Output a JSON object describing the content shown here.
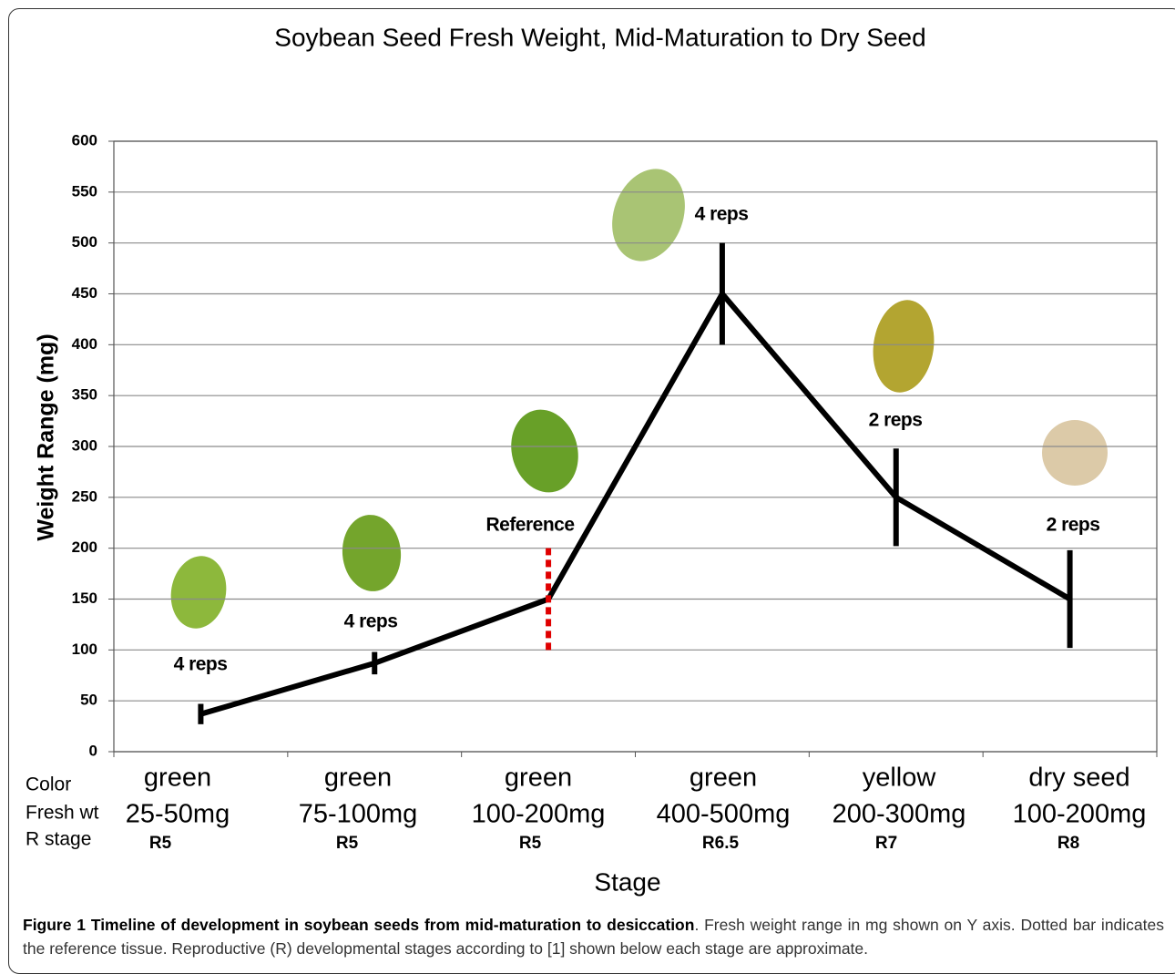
{
  "chart_data": {
    "type": "line",
    "title": "Soybean Seed Fresh Weight, Mid-Maturation to Dry Seed",
    "y_label": "Weight Range (mg)",
    "x_label": "Stage",
    "ylim": [
      0,
      600
    ],
    "yticks": [
      0,
      50,
      100,
      150,
      200,
      250,
      300,
      350,
      400,
      450,
      500,
      550,
      600
    ],
    "grid": true,
    "category_rows": [
      {
        "name": "Color",
        "values": [
          "green",
          "green",
          "green",
          "green",
          "yellow",
          "dry seed"
        ]
      },
      {
        "name": "Fresh wt",
        "values": [
          "25-50mg",
          "75-100mg",
          "100-200mg",
          "400-500mg",
          "200-300mg",
          "100-200mg"
        ]
      },
      {
        "name": "R stage",
        "values": [
          "R5",
          "R5",
          "R5",
          "R6.5",
          "R7",
          "R8"
        ]
      }
    ],
    "series": [
      {
        "color": "#000000",
        "values": [
          37,
          87,
          150,
          450,
          250,
          150
        ],
        "errors": [
          10,
          11,
          null,
          50,
          48,
          48
        ]
      }
    ],
    "rep_labels": [
      "4 reps",
      "4 reps",
      null,
      "4 reps",
      "2 reps",
      "2 reps"
    ],
    "reference": {
      "label": "Reference",
      "range": [
        100,
        200
      ],
      "color": "#e00000"
    }
  },
  "caption": {
    "title": "Figure 1 Timeline of development in soybean seeds from mid-maturation to desiccation",
    "text": ". Fresh weight range in mg shown on Y axis. Dotted bar indicates the reference tissue. Reproductive (R) developmental stages according to [1] shown below each stage are approximate."
  }
}
